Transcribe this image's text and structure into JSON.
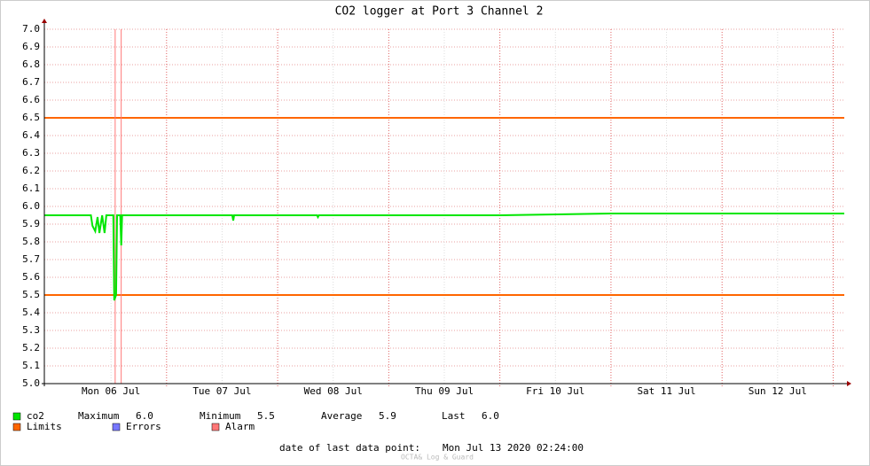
{
  "chart_data": {
    "type": "line",
    "title": "CO2 logger at Port 3 Channel 2",
    "xlim": [
      -2.4,
      170.4
    ],
    "xticks": [
      {
        "value": 12,
        "label": "Mon 06 Jul"
      },
      {
        "value": 36,
        "label": "Tue 07 Jul"
      },
      {
        "value": 60,
        "label": "Wed 08 Jul"
      },
      {
        "value": 84,
        "label": "Thu 09 Jul"
      },
      {
        "value": 108,
        "label": "Fri 10 Jul"
      },
      {
        "value": 132,
        "label": "Sat 11 Jul"
      },
      {
        "value": 156,
        "label": "Sun 12 Jul"
      }
    ],
    "x_major_grid": [
      24,
      48,
      72,
      96,
      120,
      144,
      168
    ],
    "ylim": [
      5.0,
      7.0
    ],
    "yticks": [
      {
        "value": 5.0,
        "label": "5.0"
      },
      5.1,
      5.2,
      5.3,
      5.4,
      5.5,
      5.6,
      5.7,
      5.8,
      5.9,
      {
        "value": 6.0,
        "label": "6.0"
      },
      6.1,
      6.2,
      6.3,
      6.4,
      6.5,
      6.6,
      6.7,
      6.8,
      6.9,
      {
        "value": 7.0,
        "label": "7.0"
      }
    ],
    "grid": true,
    "series": [
      {
        "name": "co2",
        "color": "#00e600",
        "x": [
          -2.4,
          4,
          7.65,
          8.0,
          8.6,
          9.1,
          9.5,
          10.1,
          10.6,
          11.0,
          12.5,
          12.7,
          13.1,
          13.3,
          14.0,
          14.2,
          14.4,
          24,
          36,
          38.2,
          38.4,
          38.6,
          48,
          56.5,
          56.7,
          56.9,
          72,
          96,
          120,
          144,
          170.4
        ],
        "values": [
          5.95,
          5.95,
          5.95,
          5.89,
          5.86,
          5.94,
          5.85,
          5.95,
          5.85,
          5.95,
          5.95,
          5.47,
          5.5,
          5.95,
          5.95,
          5.78,
          5.95,
          5.95,
          5.95,
          5.95,
          5.92,
          5.95,
          5.95,
          5.95,
          5.94,
          5.95,
          5.95,
          5.95,
          5.96,
          5.96,
          5.96
        ]
      }
    ],
    "limits": {
      "name": "Limits",
      "color": "#ff6600",
      "values": [
        5.5,
        6.5
      ]
    },
    "errors": {
      "name": "Errors",
      "color": "#7777ff"
    },
    "alarms": {
      "name": "Alarm",
      "color": "#ff7777",
      "x": [
        12.9,
        14.2
      ]
    },
    "stats": [
      {
        "label": "Maximum",
        "value": "6.0"
      },
      {
        "label": "Minimum",
        "value": "5.5"
      },
      {
        "label": "Average",
        "value": "5.9"
      },
      {
        "label": "Last",
        "value": "6.0"
      }
    ],
    "footer_label": "date of last data point:",
    "footer_date": "Mon Jul 13 2020 02:24:00",
    "watermark": "OCTA& Log & Guard"
  }
}
